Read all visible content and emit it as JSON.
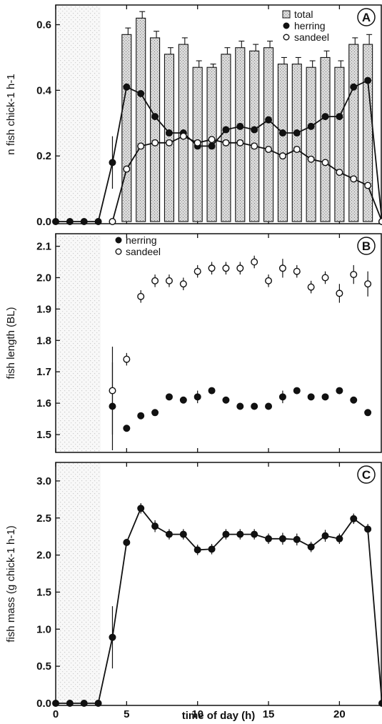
{
  "colors": {
    "ink": "#111111",
    "bar_fill": "#dcdcdc",
    "shade": "#d8d8d8",
    "background": "#ffffff"
  },
  "xaxis": {
    "label": "time of day (h)",
    "range": [
      0,
      23
    ],
    "ticks": [
      0,
      5,
      10,
      15,
      20
    ]
  },
  "chart_data": [
    {
      "type": "bar",
      "panel_label": "A",
      "ylabel": "n fish chick-1 h-1",
      "ylim": [
        0,
        0.66
      ],
      "yticks": [
        0.0,
        0.2,
        0.4,
        0.6
      ],
      "ytick_labels": [
        "0.0",
        "0.2",
        "0.4",
        "0.6"
      ],
      "legend_position": "top-right",
      "grid": false,
      "series": [
        {
          "name": "total",
          "kind": "bar",
          "x": [
            5,
            6,
            7,
            8,
            9,
            10,
            11,
            12,
            13,
            14,
            15,
            16,
            17,
            18,
            19,
            20,
            21,
            22
          ],
          "values": [
            0.57,
            0.62,
            0.56,
            0.51,
            0.54,
            0.47,
            0.47,
            0.51,
            0.53,
            0.52,
            0.53,
            0.48,
            0.48,
            0.47,
            0.5,
            0.47,
            0.54,
            0.54
          ],
          "err": [
            0.02,
            0.02,
            0.02,
            0.02,
            0.02,
            0.02,
            0.01,
            0.02,
            0.02,
            0.02,
            0.02,
            0.02,
            0.02,
            0.02,
            0.02,
            0.02,
            0.02,
            0.03
          ]
        },
        {
          "name": "herring",
          "kind": "line-filled",
          "x": [
            0,
            1,
            2,
            3,
            4,
            5,
            6,
            7,
            8,
            9,
            10,
            11,
            12,
            13,
            14,
            15,
            16,
            17,
            18,
            19,
            20,
            21,
            22,
            23
          ],
          "values": [
            0,
            0,
            0,
            0,
            0.18,
            0.41,
            0.39,
            0.32,
            0.27,
            0.27,
            0.23,
            0.23,
            0.28,
            0.29,
            0.28,
            0.31,
            0.27,
            0.27,
            0.29,
            0.32,
            0.32,
            0.41,
            0.43,
            0
          ],
          "err": [
            0,
            0,
            0,
            0,
            0.08,
            0,
            0,
            0,
            0,
            0,
            0,
            0,
            0,
            0,
            0,
            0,
            0,
            0,
            0,
            0,
            0,
            0,
            0,
            0
          ]
        },
        {
          "name": "sandeel",
          "kind": "line-open",
          "x": [
            4,
            5,
            6,
            7,
            8,
            9,
            10,
            11,
            12,
            13,
            14,
            15,
            16,
            17,
            18,
            19,
            20,
            21,
            22,
            23
          ],
          "values": [
            0,
            0.16,
            0.23,
            0.24,
            0.24,
            0.26,
            0.24,
            0.25,
            0.24,
            0.24,
            0.23,
            0.22,
            0.2,
            0.22,
            0.19,
            0.18,
            0.15,
            0.13,
            0.11,
            0
          ],
          "err": [
            0,
            0,
            0,
            0,
            0,
            0,
            0,
            0,
            0,
            0,
            0,
            0,
            0,
            0,
            0,
            0,
            0,
            0,
            0,
            0
          ]
        }
      ]
    },
    {
      "type": "scatter",
      "panel_label": "B",
      "ylabel": "fish length (BL)",
      "ylim": [
        1.45,
        2.14
      ],
      "yticks": [
        1.5,
        1.6,
        1.7,
        1.8,
        1.9,
        2.0,
        2.1
      ],
      "ytick_labels": [
        "1.5",
        "1.6",
        "1.7",
        "1.8",
        "1.9",
        "2.0",
        "2.1"
      ],
      "legend_position": "top-left",
      "grid": false,
      "series": [
        {
          "name": "herring",
          "kind": "scatter-filled",
          "x": [
            4,
            5,
            6,
            7,
            8,
            9,
            10,
            11,
            12,
            13,
            14,
            15,
            16,
            17,
            18,
            19,
            20,
            21,
            22
          ],
          "values": [
            1.59,
            1.52,
            1.56,
            1.57,
            1.62,
            1.61,
            1.62,
            1.64,
            1.61,
            1.59,
            1.59,
            1.59,
            1.62,
            1.64,
            1.62,
            1.62,
            1.64,
            1.61,
            1.57
          ],
          "err": [
            0.14,
            0.01,
            0.01,
            0.01,
            0.01,
            0.01,
            0.02,
            0.01,
            0.01,
            0.01,
            0.01,
            0.01,
            0.02,
            0.01,
            0.01,
            0.01,
            0.01,
            0.01,
            0.01
          ]
        },
        {
          "name": "sandeel",
          "kind": "scatter-open",
          "x": [
            4,
            5,
            6,
            7,
            8,
            9,
            10,
            11,
            12,
            13,
            14,
            15,
            16,
            17,
            18,
            19,
            20,
            21,
            22
          ],
          "values": [
            1.64,
            1.74,
            1.94,
            1.99,
            1.99,
            1.98,
            2.02,
            2.03,
            2.03,
            2.03,
            2.05,
            1.99,
            2.03,
            2.02,
            1.97,
            2.0,
            1.95,
            2.01,
            1.98
          ],
          "err": [
            0.14,
            0.02,
            0.02,
            0.02,
            0.02,
            0.02,
            0.02,
            0.02,
            0.02,
            0.02,
            0.02,
            0.02,
            0.03,
            0.02,
            0.02,
            0.02,
            0.03,
            0.03,
            0.04
          ]
        }
      ]
    },
    {
      "type": "line",
      "panel_label": "C",
      "ylabel": "fish mass (g chick-1 h-1)",
      "ylim": [
        0,
        3.25
      ],
      "yticks": [
        0.0,
        0.5,
        1.0,
        1.5,
        2.0,
        2.5,
        3.0
      ],
      "ytick_labels": [
        "0.0",
        "0.5",
        "1.0",
        "1.5",
        "2.0",
        "2.5",
        "3.0"
      ],
      "grid": false,
      "series": [
        {
          "kind": "line-filled",
          "x": [
            0,
            1,
            2,
            3,
            4,
            5,
            6,
            7,
            8,
            9,
            10,
            11,
            12,
            13,
            14,
            15,
            16,
            17,
            18,
            19,
            20,
            21,
            22,
            23
          ],
          "values": [
            0,
            0,
            0,
            0,
            0.89,
            2.17,
            2.63,
            2.39,
            2.28,
            2.28,
            2.07,
            2.08,
            2.28,
            2.28,
            2.28,
            2.22,
            2.22,
            2.21,
            2.11,
            2.26,
            2.22,
            2.49,
            2.35,
            0
          ],
          "err": [
            0,
            0,
            0,
            0,
            0.42,
            0.05,
            0.07,
            0.08,
            0.07,
            0.07,
            0.07,
            0.07,
            0.07,
            0.07,
            0.07,
            0.07,
            0.08,
            0.08,
            0.07,
            0.08,
            0.07,
            0.07,
            0.07,
            0
          ]
        }
      ]
    }
  ]
}
